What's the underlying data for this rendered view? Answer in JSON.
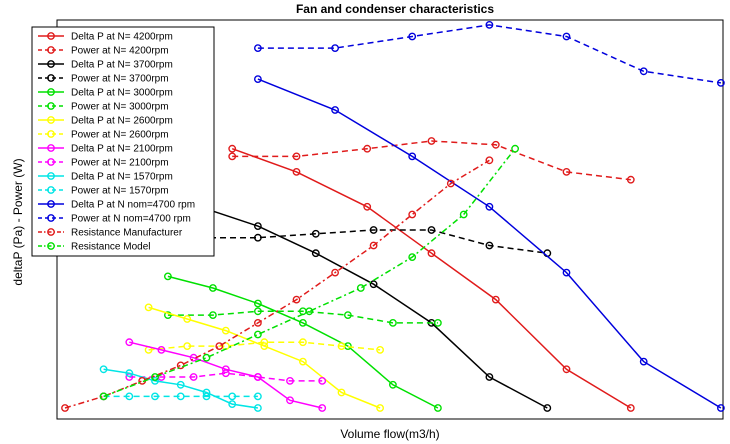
{
  "chart_data": {
    "type": "line",
    "title": "Fan and condenser characteristics",
    "xlabel": "Volume flow(m3/h)",
    "ylabel": "deltaP (Pa) - Power (W)",
    "grid": false,
    "legend_position": "top-left",
    "tick_labels": "none",
    "xlim": [
      0,
      100
    ],
    "ylim": [
      0,
      100
    ],
    "series": [
      {
        "name": "Delta P at N= 4200rpm",
        "color": "#e01b1b",
        "dash": "solid",
        "x": [
          26,
          36,
          47,
          57,
          67,
          78,
          88
        ],
        "y": [
          67,
          61,
          52,
          40,
          28,
          10,
          0
        ]
      },
      {
        "name": "Power at N= 4200rpm",
        "color": "#e01b1b",
        "dash": "dashed",
        "x": [
          26,
          36,
          47,
          57,
          67,
          78,
          88
        ],
        "y": [
          65,
          65,
          67,
          69,
          68,
          61,
          59
        ]
      },
      {
        "name": "Delta P at N= 3700rpm",
        "color": "#000000",
        "dash": "solid",
        "x": [
          21,
          30,
          39,
          48,
          57,
          66,
          75
        ],
        "y": [
          52,
          47,
          40,
          32,
          22,
          8,
          0
        ]
      },
      {
        "name": "Power at N= 3700rpm",
        "color": "#000000",
        "dash": "dashed",
        "x": [
          21,
          30,
          39,
          48,
          57,
          66,
          75
        ],
        "y": [
          44,
          44,
          45,
          46,
          46,
          42,
          40
        ]
      },
      {
        "name": "Delta P at N= 3000rpm",
        "color": "#00e000",
        "dash": "solid",
        "x": [
          16,
          23,
          30,
          37,
          44,
          51,
          58
        ],
        "y": [
          34,
          31,
          27,
          22,
          16,
          6,
          0
        ]
      },
      {
        "name": "Power at N= 3000rpm",
        "color": "#00e000",
        "dash": "dashed",
        "x": [
          16,
          23,
          30,
          37,
          44,
          51,
          58
        ],
        "y": [
          24,
          24,
          25,
          25,
          24,
          22,
          22
        ]
      },
      {
        "name": "Delta P at N= 2600rpm",
        "color": "#ffff00",
        "dash": "solid",
        "x": [
          13,
          19,
          25,
          31,
          37,
          43,
          49
        ],
        "y": [
          26,
          23,
          20,
          16,
          12,
          4,
          0
        ]
      },
      {
        "name": "Power at N= 2600rpm",
        "color": "#ffff00",
        "dash": "dashed",
        "x": [
          13,
          19,
          25,
          31,
          37,
          43,
          49
        ],
        "y": [
          15,
          16,
          16,
          17,
          17,
          16,
          15
        ]
      },
      {
        "name": "Delta P at N= 2100rpm",
        "color": "#ff00ff",
        "dash": "solid",
        "x": [
          10,
          15,
          20,
          25,
          30,
          35,
          40
        ],
        "y": [
          17,
          15,
          13,
          10,
          8,
          2,
          0
        ]
      },
      {
        "name": "Power at N= 2100rpm",
        "color": "#ff00ff",
        "dash": "dashed",
        "x": [
          10,
          15,
          20,
          25,
          30,
          35,
          40
        ],
        "y": [
          8,
          8,
          8,
          9,
          8,
          7,
          7
        ]
      },
      {
        "name": "Delta P at N= 1570rpm",
        "color": "#00e5e5",
        "dash": "solid",
        "x": [
          6,
          10,
          14,
          18,
          22,
          26,
          30
        ],
        "y": [
          10,
          9,
          7,
          6,
          4,
          1,
          0
        ]
      },
      {
        "name": "Power at N= 1570rpm",
        "color": "#00e5e5",
        "dash": "dashed",
        "x": [
          6,
          10,
          14,
          18,
          22,
          26,
          30
        ],
        "y": [
          3,
          3,
          3,
          3,
          3,
          3,
          3
        ]
      },
      {
        "name": "Delta P at N nom=4700 rpm",
        "color": "#0000dd",
        "dash": "solid",
        "x": [
          30,
          42,
          54,
          66,
          78,
          90,
          102
        ],
        "y": [
          85,
          77,
          65,
          52,
          35,
          12,
          0
        ]
      },
      {
        "name": "Power at N nom=4700 rpm",
        "color": "#0000dd",
        "dash": "dashed",
        "x": [
          30,
          42,
          54,
          66,
          78,
          90,
          102
        ],
        "y": [
          93,
          93,
          96,
          99,
          96,
          87,
          84
        ]
      },
      {
        "name": "Resistance Manufacturer",
        "color": "#e01b1b",
        "dash": "dashdot",
        "x": [
          0,
          6,
          12,
          18,
          24,
          30,
          36,
          42,
          48,
          54,
          60,
          66
        ],
        "y": [
          0,
          3,
          7,
          11,
          16,
          22,
          28,
          35,
          42,
          50,
          58,
          64
        ]
      },
      {
        "name": "Resistance Model",
        "color": "#00e000",
        "dash": "dashdot",
        "x": [
          6,
          14,
          22,
          30,
          38,
          46,
          54,
          62,
          70
        ],
        "y": [
          3,
          8,
          13,
          19,
          25,
          31,
          39,
          50,
          67
        ]
      }
    ]
  }
}
